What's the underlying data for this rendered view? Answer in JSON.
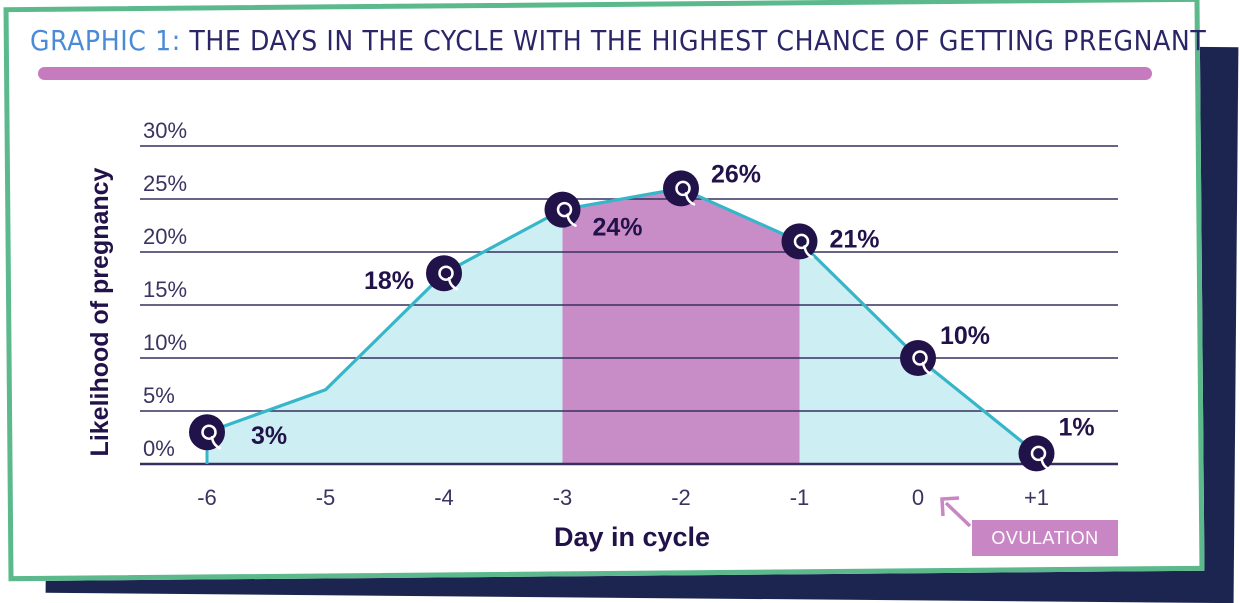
{
  "header": {
    "title_prefix": "Graphic 1:",
    "title_main": "The days in the cycle with the highest chance of getting pregnant"
  },
  "annotation": {
    "ovulation_label": "OVULATION"
  },
  "colors": {
    "area_fill": "#cdeff3",
    "highlight_fill": "#c88dc6",
    "line": "#37b6c9",
    "gridline": "#37305f",
    "marker": "#22124a",
    "title_accent": "#4a8bd8",
    "title_bar": "#c57bbd",
    "frame": "#5bb98b"
  },
  "chart_data": {
    "type": "area",
    "title": "Graphic 1: The days in the cycle with the highest chance of getting pregnant",
    "xlabel": "Day in cycle",
    "ylabel": "Likelihood of pregnancy",
    "categories": [
      "-6",
      "-5",
      "-4",
      "-3",
      "-2",
      "-1",
      "0",
      "+1"
    ],
    "yticks": [
      "0%",
      "5%",
      "10%",
      "15%",
      "20%",
      "25%",
      "30%"
    ],
    "ylim": [
      0,
      30
    ],
    "grid": true,
    "line_x": [
      -6,
      -5,
      -4,
      -3,
      -2,
      -1,
      0,
      1
    ],
    "line_y": [
      3,
      7,
      18,
      24,
      26,
      21,
      10,
      1
    ],
    "highlight_range": [
      -3,
      -1
    ],
    "series": [
      {
        "name": "",
        "points": [
          {
            "x": -6,
            "y": 3,
            "label": "3%"
          },
          {
            "x": -4,
            "y": 18,
            "label": "18%"
          },
          {
            "x": -3,
            "y": 24,
            "label": "24%"
          },
          {
            "x": -2,
            "y": 26,
            "label": "26%"
          },
          {
            "x": -1,
            "y": 21,
            "label": "21%"
          },
          {
            "x": 0,
            "y": 10,
            "label": "10%"
          },
          {
            "x": 1,
            "y": 1,
            "label": "1%"
          }
        ]
      }
    ]
  }
}
